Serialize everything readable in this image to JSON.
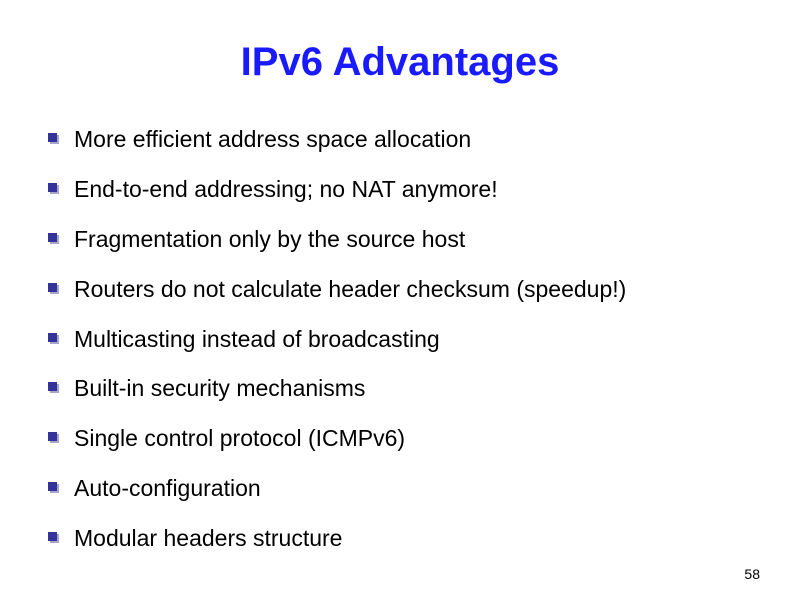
{
  "slide": {
    "title": "IPv6 Advantages",
    "title_color": "#1a1aff",
    "text_color": "#000000",
    "background_color": "#ffffff",
    "bullet_color_dark": "#333399",
    "bullet_color_light": "#a6a6cc",
    "title_fontsize": 40,
    "body_fontsize": 23,
    "pagenum_fontsize": 14,
    "bullets": [
      "More efficient address space allocation",
      "End-to-end addressing; no NAT anymore!",
      "Fragmentation only by the source host",
      "Routers do not calculate header checksum (speedup!)",
      "Multicasting instead of broadcasting",
      "Built-in security mechanisms",
      "Single control protocol (ICMPv6)",
      "Auto-configuration",
      "Modular headers structure"
    ],
    "page_number": "58"
  }
}
